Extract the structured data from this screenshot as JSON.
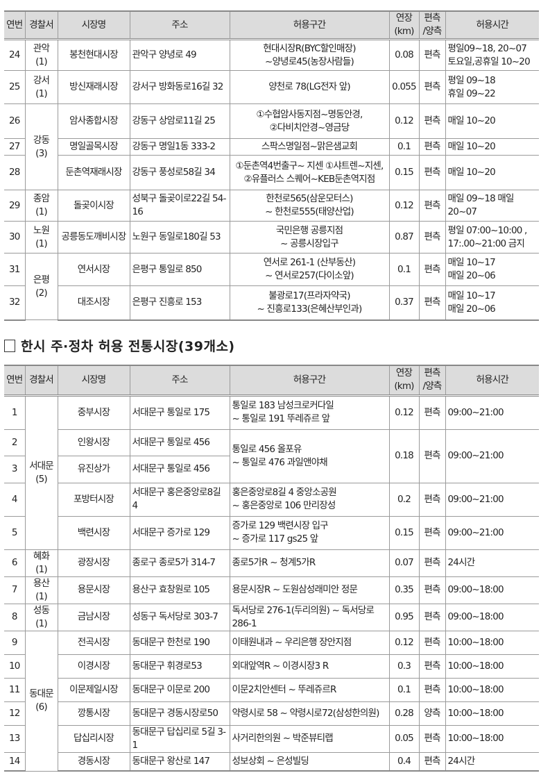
{
  "headers": [
    "연번",
    "경찰서",
    "시장명",
    "주소",
    "허용구간",
    "연장\n(km)",
    "편측\n/양측",
    "허용시간"
  ],
  "table1": [
    {
      "no": "24",
      "police": "관악 (1)",
      "market": "봉천현대시장",
      "address": "관악구  양녕로 49",
      "section": "현대시장R(BYC할인매장)\n~양녕로45(농장사람들)",
      "length": "0.08",
      "side": "편측",
      "time": "평일09~18,  20~07\n토요일,공휴일  10~20"
    },
    {
      "no": "25",
      "police": "강서 (1)",
      "market": "방신재래시장",
      "address": "강서구 방화동로16길 32",
      "section": "양천로 78(LG전자 앞)",
      "length": "0.055",
      "side": "편측",
      "time": "평일  09~18\n휴일  09~22"
    },
    {
      "no": "26",
      "police": "강동 (3)",
      "market": "암사종합시장",
      "address": "강동구 상암로11길 25",
      "section": "①수협암사동지점~명동안경,\n②다비치안경~영금당",
      "length": "0.12",
      "side": "편측",
      "time": "매일  10~20"
    },
    {
      "no": "27",
      "market": "명일골목시장",
      "address": "강동구 명일1동 333-2",
      "section": "스팍스명일점~맑은샘교회",
      "length": "0.1",
      "side": "편측",
      "time": "매일  10~20"
    },
    {
      "no": "28",
      "market": "둔촌역재래시장",
      "address": "강동구 풍성로58길 34",
      "section": "①둔촌역4번출구~ 지센 ①샤트렌~지센,\n②유플러스 스퀘어~KEB둔촌역지점",
      "length": "0.15",
      "side": "편측",
      "time": "매일  10~20"
    },
    {
      "no": "29",
      "police": "종암 (1)",
      "market": "돌곶이시장",
      "address": "성북구 돌곶이로22길 54-16",
      "section": "한천로565(삼운모터스)\n~  한천로555(태양산업)",
      "length": "0.12",
      "side": "편측",
      "time": "매일 09~18 매일 20~07"
    },
    {
      "no": "30",
      "police": "노원 (1)",
      "market": "공릉동도깨비시장",
      "address": "노원구 동일로180길 53",
      "section": "국민은행  공릉지점\n~ 공릉시장입구",
      "length": "0.87",
      "side": "편측",
      "time": "평일 07:00~10:00 ,\n17:.00~21:00 금지"
    },
    {
      "no": "31",
      "police": "은평 (2)",
      "market": "연서시장",
      "address": "은평구  통일로  850",
      "section": "연서로  261-1  (산부동산)\n~  연서로257(다이소앞)",
      "length": "0.1",
      "side": "편측",
      "time": "매일  10~17\n매일  20~06"
    },
    {
      "no": "32",
      "market": "대조시장",
      "address": "은평구  진흥로  153",
      "section": "불광로17(프라자약국)\n~ 진흥로133(은혜산부인과)",
      "length": "0.37",
      "side": "편측",
      "time": "매일  10~17\n매일  20~06"
    }
  ],
  "section_title": "한시 주·정차 허용 전통시장(39개소)",
  "table2": [
    {
      "no": "1",
      "police": "서대문\n(5)",
      "market": "중부시장",
      "address": "서대문구  통일로  175",
      "section": "통일로  183  남성크로커다일\n~  통일로  191  뚜레쥬르  앞",
      "length": "0.12",
      "side": "편측",
      "time": "09:00~21:00"
    },
    {
      "no": "2",
      "market": "인왕시장",
      "address": "서대문구  통일로  456",
      "section": "통일로  456  올포유\n~  통일로  476  과일앤야채",
      "length": "0.18",
      "side": "편측",
      "time": "09:00~21:00"
    },
    {
      "no": "3",
      "market": "유진상가",
      "address": "서대문구  통일로  456"
    },
    {
      "no": "4",
      "market": "포방터시장",
      "address": "서대문구 홍은중앙로8길 4",
      "section": "홍은중앙로8길  4  중앙소공원\n~  홍은중앙로  106  만리장성",
      "length": "0.2",
      "side": "편측",
      "time": "09:00~21:00"
    },
    {
      "no": "5",
      "market": "백련시장",
      "address": "서대문구  증가로  129",
      "section": "증가로  129  백련시장  입구\n~  증가로  117  gs25  앞",
      "length": "0.15",
      "side": "편측",
      "time": "09:00~21:00"
    },
    {
      "no": "6",
      "police": "혜화\n(1)",
      "market": "광장시장",
      "address": "종로구 종로5가 314-7",
      "section": "종로5가R  ~  청계5가R",
      "length": "0.07",
      "side": "편측",
      "time": "24시간"
    },
    {
      "no": "7",
      "police": "용산\n(1)",
      "market": "용문시장",
      "address": "용산구  효창원로  105",
      "section": "용문시장R  ~  도원삼성래미안  정문",
      "length": "0.35",
      "side": "편측",
      "time": "09:00~18:00"
    },
    {
      "no": "8",
      "police": "성동\n(1)",
      "market": "금남시장",
      "address": "성동구 독서당로 303-7",
      "section": "독서당로 276-1(두리의원) ~ 독서당로 286-1",
      "length": "0.95",
      "side": "편측",
      "time": "09:00~18:00"
    },
    {
      "no": "9",
      "police": "동대문\n(6)",
      "market": "전곡시장",
      "address": "동대문구  한천로  190",
      "section": "이태원내과  ~  우리은행  장안지점",
      "length": "0.12",
      "side": "편측",
      "time": "10:00~18:00"
    },
    {
      "no": "10",
      "market": "이경시장",
      "address": "동대문구  휘경로53",
      "section": "외대앞역R  ~  이경시장3  R",
      "length": "0.3",
      "side": "편측",
      "time": "10:00~18:00"
    },
    {
      "no": "11",
      "market": "이문제일시장",
      "address": "동대문구  이문로  200",
      "section": "이문2치안센터  ~  뚜레쥬르R",
      "length": "0.1",
      "side": "편측",
      "time": "10:00~18:00"
    },
    {
      "no": "12",
      "market": "깡통시장",
      "address": "동대문구 경동시장로50",
      "section": "약령시로 58 ~ 약령시로72(삼성한의원)",
      "length": "0.28",
      "side": "양측",
      "time": "10:00~18:00"
    },
    {
      "no": "13",
      "market": "답십리시장",
      "address": "동대문구 답십리로 5길 3-1",
      "section": "사거리한의원  ~  박준뷰티랩",
      "length": "0.05",
      "side": "편측",
      "time": "10:00~18:00"
    },
    {
      "no": "14",
      "market": "경동시장",
      "address": "동대문구  왕산로  147",
      "section": "성보상회  ~  은성빌딩",
      "length": "0.4",
      "side": "편측",
      "time": "24시간"
    }
  ]
}
